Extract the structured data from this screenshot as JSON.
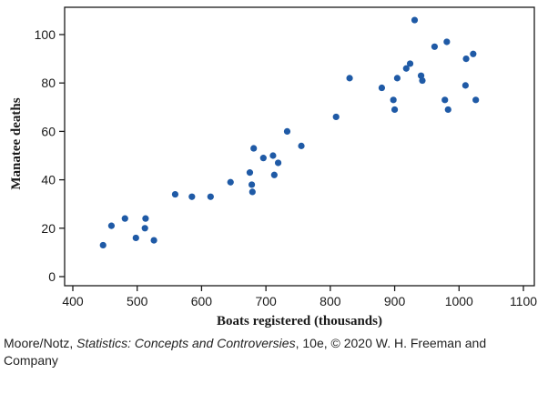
{
  "chart_data": {
    "type": "scatter",
    "xlabel": "Boats registered (thousands)",
    "ylabel": "Manatee deaths",
    "xlim": [
      400,
      1100
    ],
    "ylim": [
      0,
      100
    ],
    "xticks": [
      400,
      500,
      600,
      700,
      800,
      900,
      1000,
      1100
    ],
    "yticks": [
      0,
      20,
      40,
      60,
      80,
      100
    ],
    "grid": false,
    "marker_color": "#1f5aa6",
    "points": [
      [
        447,
        13
      ],
      [
        460,
        21
      ],
      [
        481,
        24
      ],
      [
        498,
        16
      ],
      [
        513,
        24
      ],
      [
        512,
        20
      ],
      [
        526,
        15
      ],
      [
        559,
        34
      ],
      [
        585,
        33
      ],
      [
        614,
        33
      ],
      [
        645,
        39
      ],
      [
        675,
        43
      ],
      [
        679,
        35
      ],
      [
        678,
        38
      ],
      [
        681,
        53
      ],
      [
        696,
        49
      ],
      [
        711,
        50
      ],
      [
        713,
        42
      ],
      [
        719,
        47
      ],
      [
        733,
        60
      ],
      [
        755,
        54
      ],
      [
        809,
        66
      ],
      [
        830,
        82
      ],
      [
        880,
        78
      ],
      [
        898,
        73
      ],
      [
        900,
        69
      ],
      [
        904,
        82
      ],
      [
        918,
        86
      ],
      [
        924,
        88
      ],
      [
        931,
        106
      ],
      [
        941,
        83
      ],
      [
        943,
        81
      ],
      [
        962,
        95
      ],
      [
        978,
        73
      ],
      [
        981,
        97
      ],
      [
        983,
        69
      ],
      [
        1010,
        79
      ],
      [
        1011,
        90
      ],
      [
        1022,
        92
      ],
      [
        1026,
        73
      ]
    ]
  },
  "credit": {
    "prefix": "Moore/Notz, ",
    "book_title": "Statistics: Concepts and Controversies",
    "suffix": ", 10e, © 2020 W. H. Freeman and Company"
  }
}
